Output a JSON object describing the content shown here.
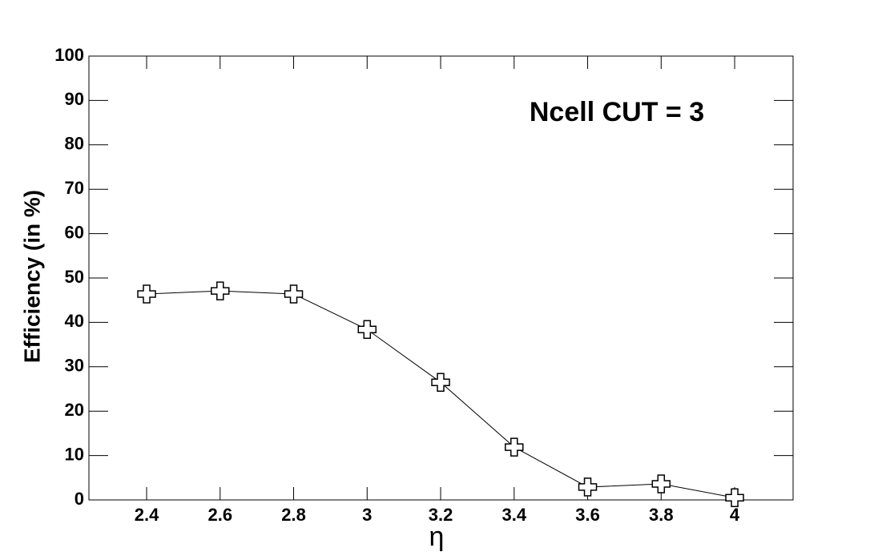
{
  "chart_data": {
    "type": "line",
    "annotation": "Ncell CUT = 3",
    "xlabel": "η",
    "ylabel": "Efficiency (in %)",
    "x": [
      2.4,
      2.6,
      2.8,
      3,
      3.2,
      3.4,
      3.6,
      3.8,
      4
    ],
    "values": [
      46.4,
      47.1,
      46.4,
      38.4,
      26.5,
      11.9,
      2.9,
      3.6,
      0.5
    ],
    "color": "#000000",
    "xlim": [
      2.243,
      4.159
    ],
    "ylim": [
      0,
      100
    ],
    "xticks": [
      2.4,
      2.6,
      2.8,
      3,
      3.2,
      3.4,
      3.6,
      3.8,
      4
    ],
    "yticks": [
      0,
      10,
      20,
      30,
      40,
      50,
      60,
      70,
      80,
      90,
      100
    ]
  }
}
